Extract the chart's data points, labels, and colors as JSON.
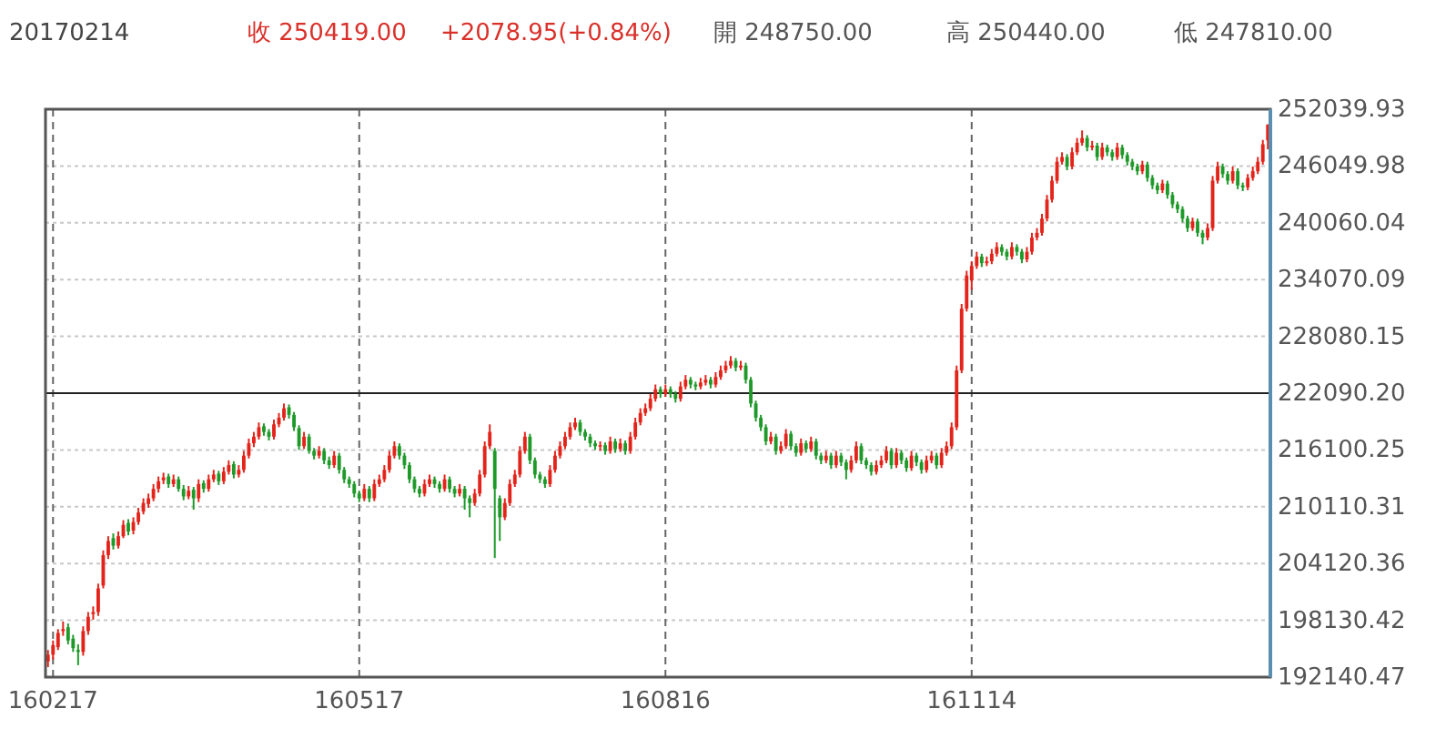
{
  "chart_data": {
    "type": "candlestick",
    "title": "20170214",
    "annotations": [
      "收 250419.00",
      "+2078.95(+0.84%)",
      "開 248750.00",
      "高 250440.00",
      "低 247810.00"
    ],
    "categories": [
      null,
      "160217",
      null,
      null,
      null,
      null,
      null,
      null,
      null,
      null,
      null,
      null,
      null,
      null,
      null,
      null,
      null,
      null,
      null,
      null,
      null,
      null,
      null,
      null,
      null,
      null,
      null,
      null,
      null,
      null,
      null,
      null,
      null,
      null,
      null,
      null,
      null,
      null,
      null,
      null,
      null,
      null,
      null,
      null,
      null,
      null,
      null,
      null,
      null,
      null,
      null,
      null,
      null,
      null,
      null,
      null,
      null,
      null,
      null,
      null,
      null,
      null,
      "160517",
      null,
      null,
      null,
      null,
      null,
      null,
      null,
      null,
      null,
      null,
      null,
      null,
      null,
      null,
      null,
      null,
      null,
      null,
      null,
      null,
      null,
      null,
      null,
      null,
      null,
      null,
      null,
      null,
      null,
      null,
      null,
      null,
      null,
      null,
      null,
      null,
      null,
      null,
      null,
      null,
      null,
      null,
      null,
      null,
      null,
      null,
      null,
      null,
      null,
      null,
      null,
      null,
      null,
      null,
      null,
      null,
      null,
      null,
      null,
      null,
      "160816",
      null,
      null,
      null,
      null,
      null,
      null,
      null,
      null,
      null,
      null,
      null,
      null,
      null,
      null,
      null,
      null,
      null,
      null,
      null,
      null,
      null,
      null,
      null,
      null,
      null,
      null,
      null,
      null,
      null,
      null,
      null,
      null,
      null,
      null,
      null,
      null,
      null,
      null,
      null,
      null,
      null,
      null,
      null,
      null,
      null,
      null,
      null,
      null,
      null,
      null,
      null,
      null,
      null,
      null,
      null,
      null,
      null,
      null,
      null,
      null,
      "161114",
      null,
      null,
      null,
      null,
      null,
      null,
      null,
      null,
      null,
      null,
      null,
      null,
      null,
      null,
      null,
      null,
      null,
      null,
      null,
      null,
      null,
      null,
      null,
      null,
      null,
      null,
      null,
      null,
      null,
      null,
      null,
      null,
      null,
      null,
      null,
      null,
      null,
      null,
      null,
      null,
      null,
      null,
      null,
      null,
      null,
      null,
      null,
      null,
      null,
      null,
      null,
      null,
      null,
      null,
      null,
      null,
      null,
      null,
      null
    ],
    "ohlc": [
      [
        193800,
        195000,
        193200,
        194500
      ],
      [
        194500,
        196000,
        194000,
        195500
      ],
      [
        195300,
        197200,
        195000,
        196800
      ],
      [
        197000,
        198000,
        196500,
        197200
      ],
      [
        197400,
        197800,
        195600,
        196000
      ],
      [
        196200,
        196600,
        194800,
        195200
      ],
      [
        195000,
        195600,
        193400,
        194800
      ],
      [
        194800,
        197500,
        194400,
        197000
      ],
      [
        197000,
        199000,
        196600,
        198500
      ],
      [
        198800,
        199600,
        198200,
        199000
      ],
      [
        199000,
        202000,
        198600,
        201500
      ],
      [
        201800,
        205500,
        201500,
        205000
      ],
      [
        205000,
        207000,
        204600,
        206500
      ],
      [
        206800,
        207300,
        205600,
        206000
      ],
      [
        206000,
        207500,
        205700,
        207000
      ],
      [
        207000,
        208700,
        206800,
        208200
      ],
      [
        208400,
        208800,
        207100,
        207500
      ],
      [
        207600,
        209000,
        207200,
        208500
      ],
      [
        208500,
        210000,
        208200,
        209500
      ],
      [
        209600,
        211000,
        209300,
        210500
      ],
      [
        210400,
        211500,
        210000,
        211000
      ],
      [
        211000,
        212500,
        210700,
        212000
      ],
      [
        212000,
        213300,
        211600,
        212800
      ],
      [
        212900,
        213700,
        212500,
        213200
      ],
      [
        213300,
        213600,
        212100,
        212500
      ],
      [
        212500,
        213500,
        212200,
        213000
      ],
      [
        213000,
        213300,
        211700,
        212000
      ],
      [
        212000,
        212400,
        210800,
        211200
      ],
      [
        211200,
        212300,
        210900,
        211800
      ],
      [
        211900,
        212200,
        209800,
        211000
      ],
      [
        211000,
        213000,
        210600,
        212500
      ],
      [
        212600,
        212900,
        211600,
        212000
      ],
      [
        212000,
        213500,
        211700,
        213000
      ],
      [
        213000,
        214000,
        212700,
        213500
      ],
      [
        213600,
        213900,
        212400,
        212800
      ],
      [
        212800,
        214300,
        212500,
        213800
      ],
      [
        213800,
        215000,
        213500,
        214500
      ],
      [
        214600,
        214900,
        213100,
        213500
      ],
      [
        213500,
        214500,
        213200,
        214000
      ],
      [
        214000,
        216000,
        213700,
        215500
      ],
      [
        215500,
        217300,
        215200,
        216800
      ],
      [
        216800,
        218000,
        216400,
        217500
      ],
      [
        217500,
        219000,
        217200,
        218500
      ],
      [
        218600,
        218900,
        217600,
        218000
      ],
      [
        218000,
        218300,
        217100,
        217500
      ],
      [
        217500,
        219300,
        217200,
        218800
      ],
      [
        218800,
        220000,
        218500,
        219500
      ],
      [
        219500,
        221000,
        219200,
        220500
      ],
      [
        220600,
        220900,
        219400,
        219800
      ],
      [
        219800,
        220100,
        218100,
        218500
      ],
      [
        218400,
        218700,
        216100,
        216500
      ],
      [
        216500,
        218000,
        216200,
        217500
      ],
      [
        217500,
        217800,
        215700,
        216000
      ],
      [
        216000,
        216300,
        215100,
        215500
      ],
      [
        215500,
        216500,
        215200,
        216000
      ],
      [
        216000,
        216300,
        214600,
        215000
      ],
      [
        215000,
        215400,
        214100,
        214500
      ],
      [
        214500,
        216000,
        214200,
        215500
      ],
      [
        215500,
        215800,
        213600,
        214000
      ],
      [
        214000,
        214300,
        212600,
        213000
      ],
      [
        213000,
        213300,
        212100,
        212500
      ],
      [
        212500,
        212800,
        211100,
        211500
      ],
      [
        211500,
        211800,
        210600,
        211000
      ],
      [
        211000,
        212500,
        210700,
        212000
      ],
      [
        212000,
        212300,
        210600,
        211000
      ],
      [
        211000,
        213000,
        210700,
        212500
      ],
      [
        212500,
        213500,
        212200,
        213000
      ],
      [
        213000,
        214500,
        212700,
        214000
      ],
      [
        214000,
        216000,
        213700,
        215500
      ],
      [
        215500,
        217000,
        215200,
        216500
      ],
      [
        216500,
        216800,
        215100,
        215500
      ],
      [
        215500,
        215800,
        214100,
        214500
      ],
      [
        214500,
        214800,
        212600,
        213000
      ],
      [
        213000,
        213300,
        211600,
        212000
      ],
      [
        212000,
        212300,
        211100,
        211500
      ],
      [
        211500,
        213000,
        211200,
        212500
      ],
      [
        212500,
        213500,
        212200,
        213000
      ],
      [
        213000,
        213300,
        212100,
        212500
      ],
      [
        212500,
        212800,
        211600,
        212000
      ],
      [
        212000,
        213500,
        211700,
        213000
      ],
      [
        213000,
        213300,
        211600,
        212000
      ],
      [
        212000,
        212300,
        211100,
        211500
      ],
      [
        211500,
        212500,
        211200,
        212000
      ],
      [
        212000,
        212300,
        209800,
        211000
      ],
      [
        211000,
        211300,
        209000,
        210500
      ],
      [
        210500,
        212000,
        210200,
        211500
      ],
      [
        211500,
        214000,
        211200,
        213500
      ],
      [
        213500,
        217000,
        213200,
        216500
      ],
      [
        216500,
        218800,
        216200,
        218000
      ],
      [
        216000,
        216300,
        204700,
        212000
      ],
      [
        211000,
        211300,
        206500,
        209000
      ],
      [
        209000,
        211000,
        208700,
        210500
      ],
      [
        210500,
        213000,
        210200,
        212500
      ],
      [
        212500,
        214000,
        212200,
        213500
      ],
      [
        213500,
        216500,
        213200,
        216000
      ],
      [
        216000,
        218000,
        215700,
        217500
      ],
      [
        217500,
        217800,
        214600,
        215000
      ],
      [
        215000,
        215300,
        213100,
        213500
      ],
      [
        213500,
        213800,
        212600,
        213000
      ],
      [
        213000,
        213300,
        212100,
        212500
      ],
      [
        212500,
        214500,
        212200,
        214000
      ],
      [
        214000,
        216000,
        213700,
        215500
      ],
      [
        215500,
        217000,
        215200,
        216500
      ],
      [
        216500,
        218000,
        216200,
        217500
      ],
      [
        217500,
        219000,
        217200,
        218500
      ],
      [
        218500,
        219500,
        218200,
        219000
      ],
      [
        219000,
        219300,
        217600,
        218000
      ],
      [
        218000,
        218300,
        217100,
        217500
      ],
      [
        217500,
        217800,
        216400,
        216800
      ],
      [
        216800,
        217100,
        216100,
        216500
      ],
      [
        216500,
        217000,
        216000,
        216600
      ],
      [
        216600,
        216900,
        215600,
        216000
      ],
      [
        216000,
        217500,
        215700,
        217000
      ],
      [
        217000,
        217300,
        215800,
        216200
      ],
      [
        216200,
        217300,
        215900,
        216800
      ],
      [
        216800,
        217100,
        215600,
        216000
      ],
      [
        216000,
        218000,
        215700,
        217500
      ],
      [
        217500,
        219500,
        217200,
        219000
      ],
      [
        219000,
        220500,
        218700,
        220000
      ],
      [
        220000,
        221000,
        219700,
        220500
      ],
      [
        220500,
        222000,
        220200,
        221500
      ],
      [
        221500,
        223000,
        221200,
        222500
      ],
      [
        222500,
        222800,
        221600,
        222000
      ],
      [
        222000,
        223000,
        221700,
        222500
      ],
      [
        222500,
        222800,
        221600,
        222000
      ],
      [
        222000,
        222300,
        221100,
        221500
      ],
      [
        221500,
        223300,
        221200,
        222800
      ],
      [
        222800,
        224000,
        222500,
        223500
      ],
      [
        223500,
        223800,
        222600,
        223000
      ],
      [
        223000,
        223300,
        222400,
        222800
      ],
      [
        222800,
        223700,
        222500,
        223200
      ],
      [
        223200,
        224000,
        222900,
        223500
      ],
      [
        223500,
        223800,
        222600,
        223000
      ],
      [
        223000,
        224300,
        222700,
        223800
      ],
      [
        223800,
        225000,
        223500,
        224500
      ],
      [
        224500,
        225500,
        224200,
        225000
      ],
      [
        225000,
        226000,
        224700,
        225500
      ],
      [
        225500,
        225800,
        224400,
        224800
      ],
      [
        224800,
        225500,
        224500,
        225000
      ],
      [
        225000,
        225300,
        223100,
        223500
      ],
      [
        223500,
        223800,
        220600,
        221000
      ],
      [
        221000,
        221300,
        219100,
        219500
      ],
      [
        219500,
        219800,
        218100,
        218500
      ],
      [
        218500,
        218800,
        216600,
        217000
      ],
      [
        217000,
        218000,
        216700,
        217500
      ],
      [
        217500,
        217800,
        215600,
        216000
      ],
      [
        216000,
        217000,
        215700,
        216500
      ],
      [
        216500,
        218300,
        216200,
        217800
      ],
      [
        217800,
        218100,
        216100,
        216500
      ],
      [
        216500,
        216800,
        215400,
        215800
      ],
      [
        215800,
        217300,
        215500,
        216800
      ],
      [
        216800,
        217100,
        215800,
        216200
      ],
      [
        216200,
        217500,
        215900,
        217000
      ],
      [
        217000,
        217300,
        215100,
        215500
      ],
      [
        215500,
        215800,
        214600,
        215000
      ],
      [
        215000,
        216000,
        214700,
        215500
      ],
      [
        215500,
        215800,
        214100,
        214500
      ],
      [
        214500,
        216000,
        214200,
        215500
      ],
      [
        215500,
        215800,
        214400,
        214800
      ],
      [
        214800,
        215100,
        213000,
        214000
      ],
      [
        214000,
        215500,
        213700,
        215000
      ],
      [
        215000,
        217000,
        214700,
        216500
      ],
      [
        216500,
        216800,
        214600,
        215000
      ],
      [
        215000,
        215300,
        214100,
        214500
      ],
      [
        214500,
        214800,
        213400,
        213800
      ],
      [
        213800,
        215000,
        213500,
        214500
      ],
      [
        214500,
        215500,
        214200,
        215000
      ],
      [
        215000,
        216500,
        214700,
        216000
      ],
      [
        216000,
        216300,
        214100,
        214500
      ],
      [
        214500,
        216300,
        214200,
        215800
      ],
      [
        215800,
        216100,
        214600,
        215000
      ],
      [
        215000,
        215300,
        213800,
        214200
      ],
      [
        214200,
        216000,
        213900,
        215500
      ],
      [
        215500,
        215800,
        214400,
        214800
      ],
      [
        214800,
        215100,
        213600,
        214000
      ],
      [
        214000,
        215500,
        213700,
        215000
      ],
      [
        215000,
        216000,
        214700,
        215500
      ],
      [
        215500,
        215800,
        214100,
        214500
      ],
      [
        214500,
        216300,
        214200,
        215800
      ],
      [
        215800,
        217000,
        215500,
        216500
      ],
      [
        216500,
        219000,
        216200,
        218500
      ],
      [
        218500,
        225000,
        218200,
        224500
      ],
      [
        224500,
        231500,
        224200,
        231000
      ],
      [
        231000,
        235000,
        230700,
        234500
      ],
      [
        234000,
        236000,
        233000,
        235500
      ],
      [
        235500,
        237000,
        235200,
        236500
      ],
      [
        236500,
        236800,
        235400,
        235800
      ],
      [
        235800,
        236500,
        235500,
        236000
      ],
      [
        236000,
        237300,
        235700,
        236800
      ],
      [
        236800,
        238000,
        236500,
        237500
      ],
      [
        237500,
        237800,
        236600,
        237000
      ],
      [
        237000,
        237300,
        236100,
        236500
      ],
      [
        236500,
        238000,
        236200,
        237500
      ],
      [
        237500,
        237800,
        236600,
        237000
      ],
      [
        237000,
        237300,
        235800,
        236200
      ],
      [
        236200,
        237500,
        235900,
        237000
      ],
      [
        237000,
        239000,
        236700,
        238500
      ],
      [
        238500,
        239500,
        238200,
        239000
      ],
      [
        239000,
        241000,
        238700,
        240500
      ],
      [
        240500,
        243000,
        240200,
        242500
      ],
      [
        242500,
        245000,
        242200,
        244500
      ],
      [
        244500,
        247000,
        244200,
        246500
      ],
      [
        246500,
        247500,
        246200,
        247000
      ],
      [
        247000,
        247300,
        245600,
        246000
      ],
      [
        246000,
        248000,
        245700,
        247500
      ],
      [
        247500,
        249000,
        247200,
        248500
      ],
      [
        248500,
        249800,
        248200,
        249000
      ],
      [
        249000,
        249300,
        247600,
        248000
      ],
      [
        248000,
        248700,
        247700,
        248200
      ],
      [
        248200,
        248500,
        246600,
        247000
      ],
      [
        247000,
        248500,
        246700,
        248000
      ],
      [
        248000,
        248300,
        247100,
        247500
      ],
      [
        247500,
        247800,
        246600,
        247000
      ],
      [
        247000,
        248500,
        246700,
        248000
      ],
      [
        248000,
        248300,
        246800,
        247200
      ],
      [
        247200,
        247500,
        246100,
        246500
      ],
      [
        246500,
        246800,
        245600,
        246000
      ],
      [
        246000,
        246300,
        245100,
        245500
      ],
      [
        245500,
        246600,
        245200,
        246200
      ],
      [
        246200,
        246500,
        244400,
        244800
      ],
      [
        244800,
        245100,
        243600,
        244000
      ],
      [
        244000,
        244300,
        243100,
        243500
      ],
      [
        243500,
        244600,
        243200,
        244200
      ],
      [
        244200,
        244500,
        242600,
        243000
      ],
      [
        243000,
        243300,
        241600,
        242000
      ],
      [
        242000,
        242300,
        241100,
        241500
      ],
      [
        241500,
        241800,
        240100,
        240500
      ],
      [
        240500,
        240800,
        239100,
        239500
      ],
      [
        239500,
        240600,
        239200,
        240200
      ],
      [
        240200,
        240500,
        238600,
        239000
      ],
      [
        239000,
        239300,
        237800,
        238500
      ],
      [
        238500,
        240000,
        238200,
        239500
      ],
      [
        239500,
        245000,
        239200,
        244500
      ],
      [
        244500,
        246500,
        244200,
        246000
      ],
      [
        246000,
        246300,
        244800,
        245200
      ],
      [
        245200,
        245500,
        244100,
        244500
      ],
      [
        244500,
        246000,
        244200,
        245500
      ],
      [
        245500,
        245800,
        243600,
        244000
      ],
      [
        244000,
        244300,
        243400,
        243800
      ],
      [
        243800,
        245200,
        243500,
        244800
      ],
      [
        244800,
        246000,
        244500,
        245500
      ],
      [
        245500,
        247000,
        245200,
        246500
      ],
      [
        246500,
        248800,
        246200,
        248340.05
      ],
      [
        248750,
        250440,
        247810,
        250419
      ]
    ],
    "ylim": [
      192140.47,
      252039.93
    ],
    "yticks": [
      192140.47,
      198130.42,
      204120.36,
      210110.31,
      216100.25,
      {
        "value": 222090.2,
        "label": "222090.20"
      },
      228080.15,
      234070.09,
      240060.04,
      246049.98,
      252039.93
    ],
    "grid": true,
    "ref_lines": [
      {
        "axis": "y",
        "value": 222090.2,
        "color": "#222222"
      }
    ]
  }
}
